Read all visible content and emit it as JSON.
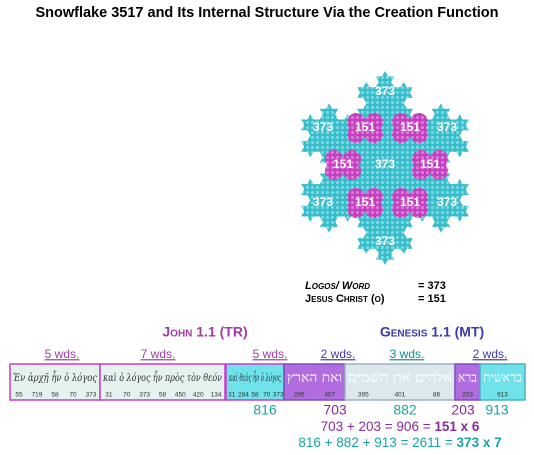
{
  "title": "Snowflake 3517 and Its Internal Structure Via the Creation Function",
  "snowflake": {
    "labels": [
      "373",
      "373",
      "151",
      "151",
      "373",
      "151",
      "373",
      "151",
      "373",
      "151",
      "151",
      "373",
      "373"
    ]
  },
  "legend": [
    {
      "label": "Logos/ Word",
      "value": "= 373"
    },
    {
      "label": "Jesus Christ (o)",
      "value": "= 151"
    }
  ],
  "headers": {
    "john": "John 1.1 (TR)",
    "genesis": "Genesis 1.1 (MT)"
  },
  "word_counts": [
    "5 wds.",
    "7 wds.",
    "5 wds.",
    "2 wds.",
    "3 wds.",
    "2 wds."
  ],
  "segments": [
    {
      "text": "Ἐν ἀρχῇ ἦν ὁ λόγος",
      "numbers": [
        "55",
        "719",
        "58",
        "70",
        "373"
      ]
    },
    {
      "text": "καὶ ὁ λόγος ἦν πρὸς τὸν θεόν",
      "numbers": [
        "31",
        "70",
        "373",
        "58",
        "450",
        "420",
        "134"
      ]
    },
    {
      "text": "καὶ θεὸς ἦν ὁ λόγος",
      "numbers": [
        "31",
        "284",
        "58",
        "70",
        "373"
      ]
    },
    {
      "text": "ואת הארץ",
      "numbers": [
        "296",
        "407"
      ]
    },
    {
      "text": "אלהים את השמים",
      "numbers": [
        "395",
        "401",
        "86"
      ]
    },
    {
      "text": "ברא",
      "numbers": [
        "203"
      ]
    },
    {
      "text": "בראשית",
      "numbers": [
        "913"
      ]
    }
  ],
  "totals": [
    "816",
    "703",
    "882",
    "203",
    "913"
  ],
  "equations": [
    [
      {
        "text": "703 + 203 = 906 = "
      },
      {
        "text": "151 x 6",
        "bold": true
      }
    ],
    [
      {
        "text": "816 + 882 + 913 = 2611 = "
      },
      {
        "text": "373 x 7",
        "bold": true
      }
    ]
  ]
}
